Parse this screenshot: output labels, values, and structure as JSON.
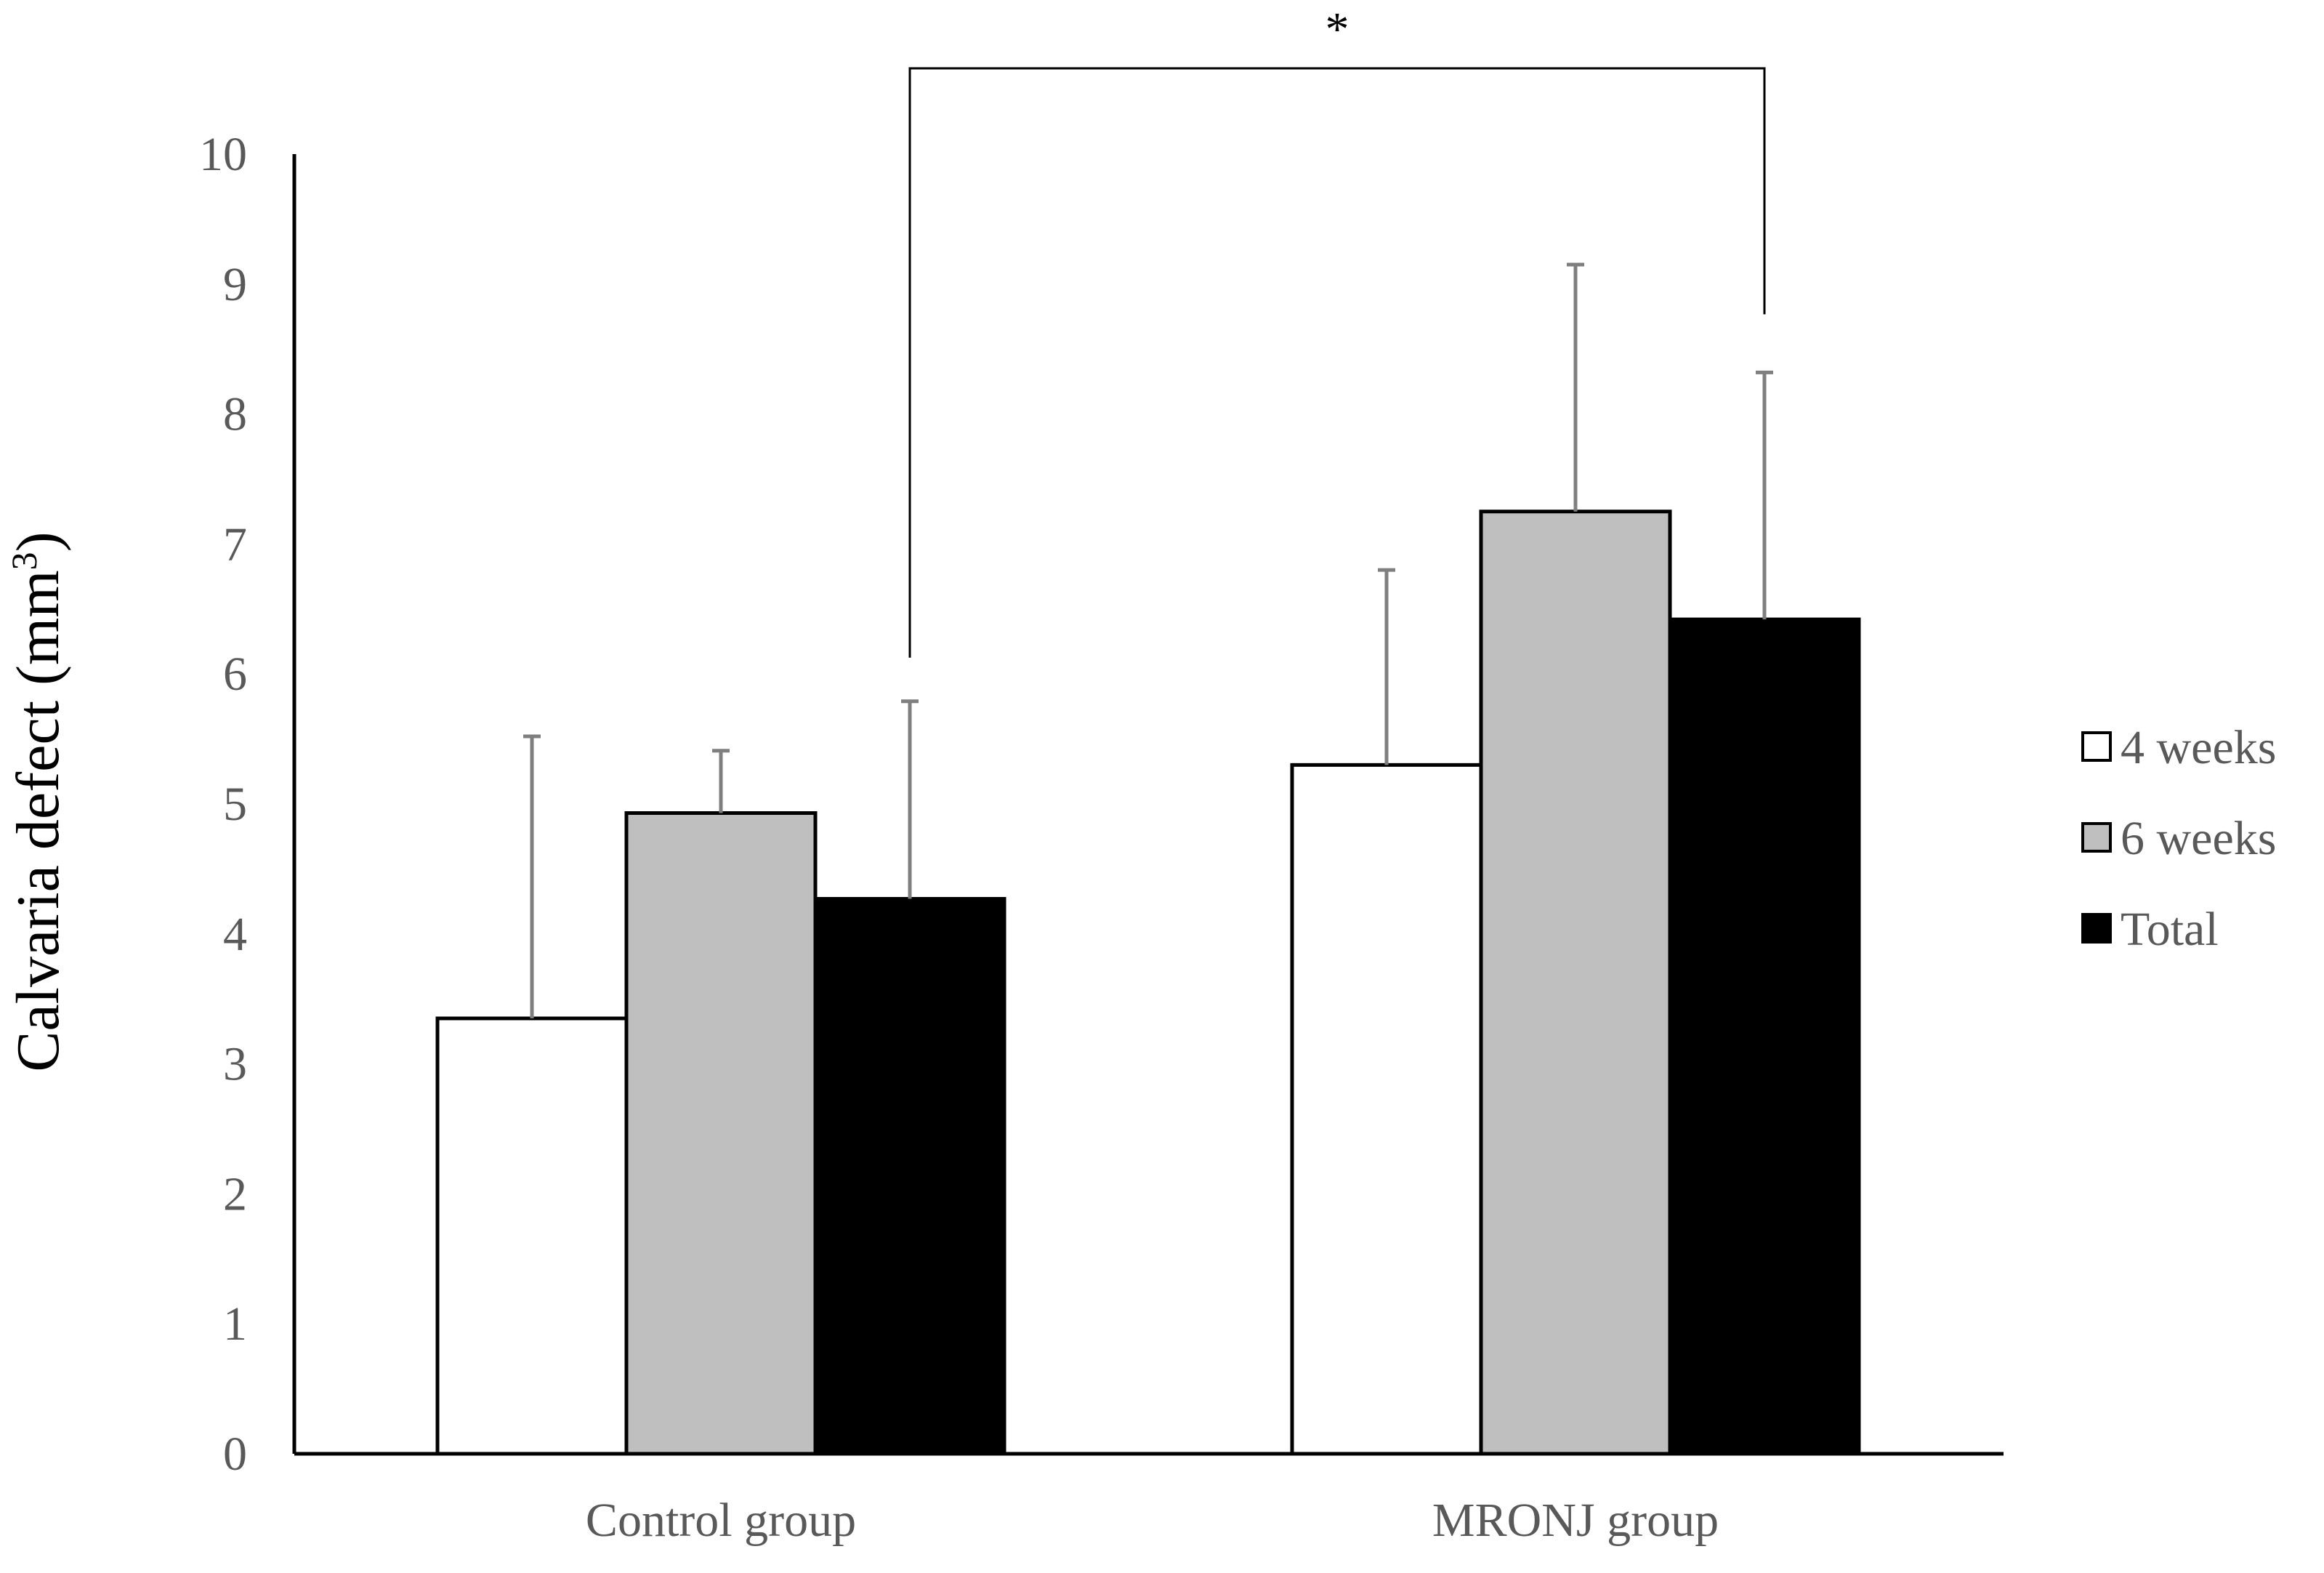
{
  "chart_data": {
    "type": "bar",
    "categories": [
      "Control group",
      "MRONJ group"
    ],
    "series": [
      {
        "name": "4 weeks",
        "values": [
          3.35,
          5.3
        ],
        "errors": [
          2.17,
          1.5
        ],
        "color": "#ffffff"
      },
      {
        "name": "6 weeks",
        "values": [
          4.93,
          7.25
        ],
        "errors": [
          0.48,
          1.9
        ],
        "color": "#bfbfbf"
      },
      {
        "name": "Total",
        "values": [
          4.27,
          6.42
        ],
        "errors": [
          1.52,
          1.9
        ],
        "color": "#000000"
      }
    ],
    "ylabel": "Calvaria defect (mm",
    "ylabel_superscript": "3",
    "ylabel_suffix": ")",
    "ylim": [
      0,
      10
    ],
    "yticks": [
      "0",
      "1",
      "2",
      "3",
      "4",
      "5",
      "6",
      "7",
      "8",
      "9",
      "10"
    ],
    "grid": false,
    "legend_position": "right",
    "significance": {
      "label": "*",
      "from": "Control group Total",
      "to": "MRONJ group Total"
    }
  }
}
